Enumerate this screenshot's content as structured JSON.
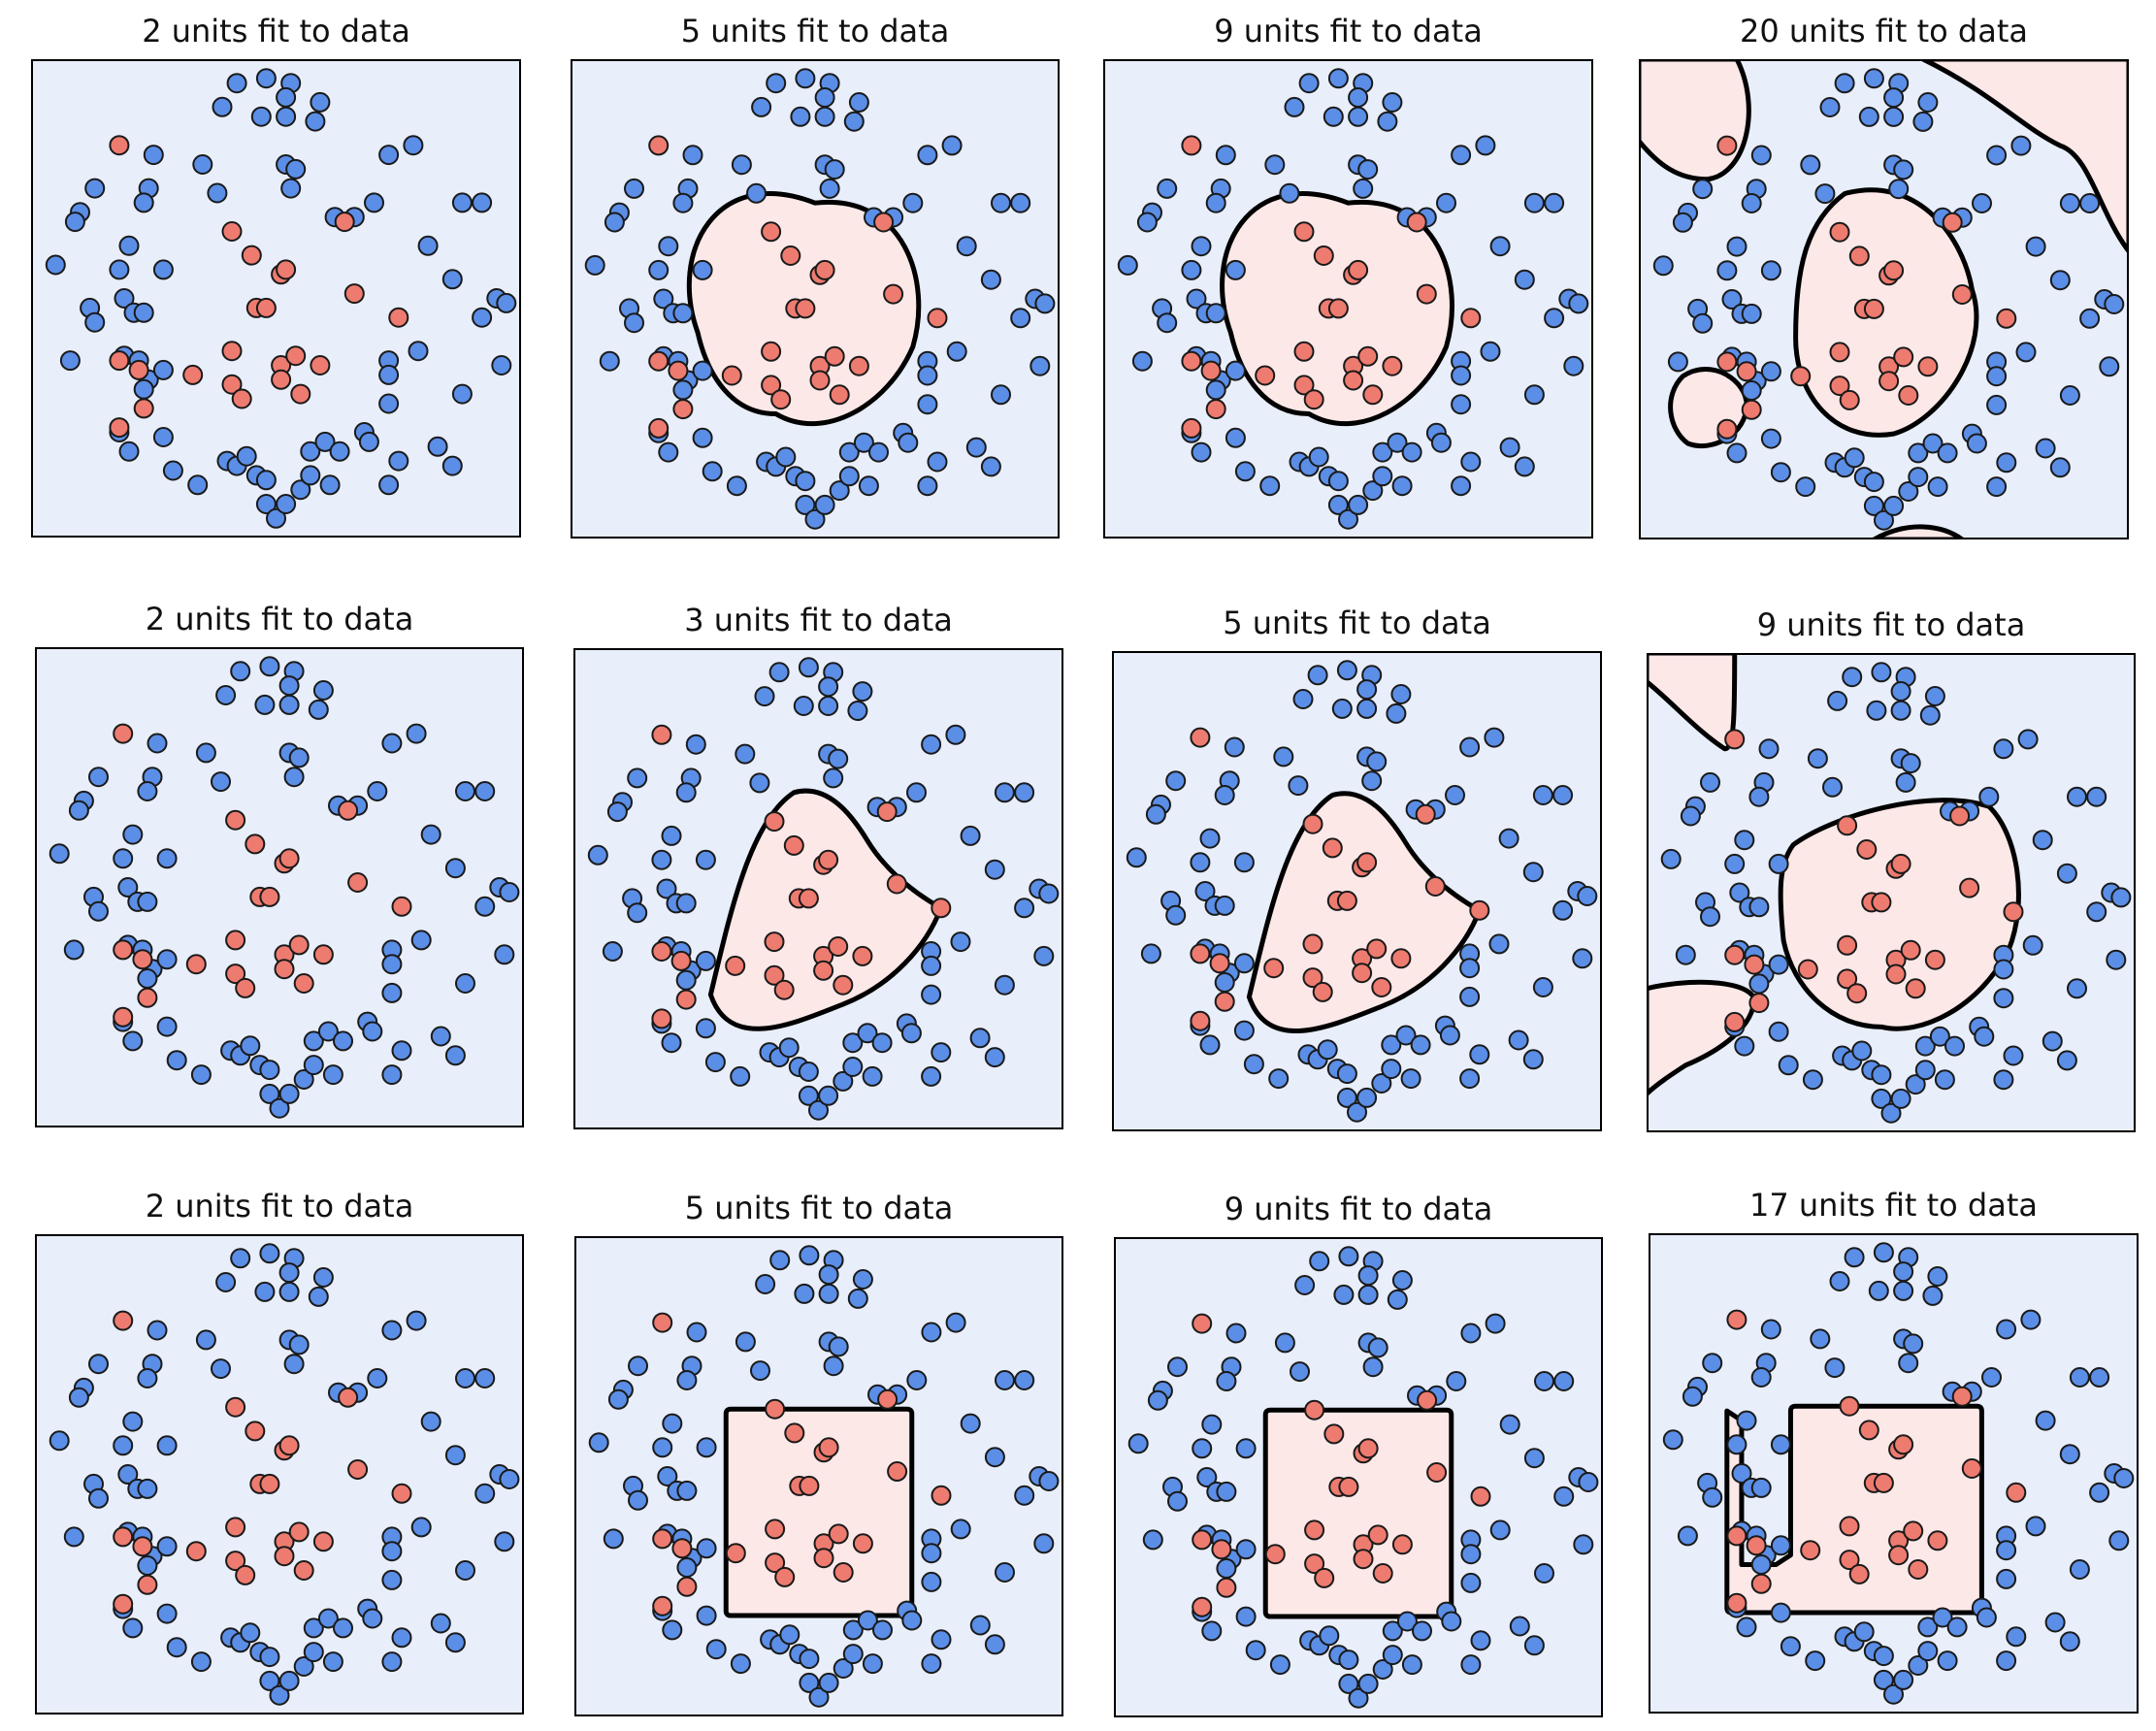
{
  "colors": {
    "background_region": "#e8eefa",
    "inside_region": "#fde8e8",
    "blue_point": "#5b8ee6",
    "red_point": "#ee7b6f",
    "point_edge": "#1a1a1a",
    "boundary": "#000000"
  },
  "chart_data": [
    {
      "type": "scatter",
      "title": "2 units fit to data",
      "boundary": "none",
      "dataset": "A",
      "xlim": [
        0,
        1
      ],
      "ylim": [
        0,
        1
      ],
      "grid": false
    },
    {
      "type": "scatter",
      "title": "5 units fit to data",
      "boundary": "round",
      "dataset": "A",
      "xlim": [
        0,
        1
      ],
      "ylim": [
        0,
        1
      ],
      "grid": false
    },
    {
      "type": "scatter",
      "title": "9 units fit to data",
      "boundary": "round",
      "dataset": "A",
      "xlim": [
        0,
        1
      ],
      "ylim": [
        0,
        1
      ],
      "grid": false
    },
    {
      "type": "scatter",
      "title": "20 units fit to data",
      "boundary": "round-with-islands",
      "dataset": "A",
      "xlim": [
        0,
        1
      ],
      "ylim": [
        0,
        1
      ],
      "grid": false
    },
    {
      "type": "scatter",
      "title": "2 units fit to data",
      "boundary": "none",
      "dataset": "A",
      "xlim": [
        0,
        1
      ],
      "ylim": [
        0,
        1
      ],
      "grid": false
    },
    {
      "type": "scatter",
      "title": "3 units fit to data",
      "boundary": "polygon",
      "dataset": "A",
      "xlim": [
        0,
        1
      ],
      "ylim": [
        0,
        1
      ],
      "grid": false
    },
    {
      "type": "scatter",
      "title": "5 units fit to data",
      "boundary": "polygon",
      "dataset": "A",
      "xlim": [
        0,
        1
      ],
      "ylim": [
        0,
        1
      ],
      "grid": false
    },
    {
      "type": "scatter",
      "title": "9 units fit to data",
      "boundary": "polygon-with-islands",
      "dataset": "A",
      "xlim": [
        0,
        1
      ],
      "ylim": [
        0,
        1
      ],
      "grid": false
    },
    {
      "type": "scatter",
      "title": "2 units fit to data",
      "boundary": "none",
      "dataset": "A",
      "xlim": [
        0,
        1
      ],
      "ylim": [
        0,
        1
      ],
      "grid": false
    },
    {
      "type": "scatter",
      "title": "5 units fit to data",
      "boundary": "rectangle",
      "dataset": "A",
      "xlim": [
        0,
        1
      ],
      "ylim": [
        0,
        1
      ],
      "grid": false
    },
    {
      "type": "scatter",
      "title": "9 units fit to data",
      "boundary": "rectangle",
      "dataset": "A",
      "xlim": [
        0,
        1
      ],
      "ylim": [
        0,
        1
      ],
      "grid": false
    },
    {
      "type": "scatter",
      "title": "17 units fit to data",
      "boundary": "rectangle-with-hook",
      "dataset": "A",
      "xlim": [
        0,
        1
      ],
      "ylim": [
        0,
        1
      ],
      "grid": false
    }
  ],
  "datasets": {
    "A": {
      "blue": [
        [
          0.42,
          0.05
        ],
        [
          0.48,
          0.04
        ],
        [
          0.53,
          0.05
        ],
        [
          0.39,
          0.1
        ],
        [
          0.59,
          0.09
        ],
        [
          0.52,
          0.08
        ],
        [
          0.47,
          0.12
        ],
        [
          0.52,
          0.12
        ],
        [
          0.58,
          0.13
        ],
        [
          0.25,
          0.2
        ],
        [
          0.78,
          0.18
        ],
        [
          0.35,
          0.22
        ],
        [
          0.52,
          0.22
        ],
        [
          0.54,
          0.23
        ],
        [
          0.73,
          0.2
        ],
        [
          0.13,
          0.27
        ],
        [
          0.24,
          0.27
        ],
        [
          0.23,
          0.3
        ],
        [
          0.1,
          0.32
        ],
        [
          0.09,
          0.34
        ],
        [
          0.38,
          0.28
        ],
        [
          0.53,
          0.27
        ],
        [
          0.7,
          0.3
        ],
        [
          0.88,
          0.3
        ],
        [
          0.92,
          0.3
        ],
        [
          0.66,
          0.33
        ],
        [
          0.62,
          0.33
        ],
        [
          0.05,
          0.43
        ],
        [
          0.2,
          0.39
        ],
        [
          0.18,
          0.44
        ],
        [
          0.81,
          0.39
        ],
        [
          0.27,
          0.44
        ],
        [
          0.86,
          0.46
        ],
        [
          0.19,
          0.5
        ],
        [
          0.21,
          0.53
        ],
        [
          0.12,
          0.52
        ],
        [
          0.13,
          0.55
        ],
        [
          0.23,
          0.53
        ],
        [
          0.95,
          0.5
        ],
        [
          0.97,
          0.51
        ],
        [
          0.92,
          0.54
        ],
        [
          0.08,
          0.63
        ],
        [
          0.19,
          0.62
        ],
        [
          0.22,
          0.63
        ],
        [
          0.24,
          0.67
        ],
        [
          0.27,
          0.65
        ],
        [
          0.23,
          0.69
        ],
        [
          0.73,
          0.63
        ],
        [
          0.73,
          0.66
        ],
        [
          0.79,
          0.61
        ],
        [
          0.96,
          0.64
        ],
        [
          0.73,
          0.72
        ],
        [
          0.88,
          0.7
        ],
        [
          0.27,
          0.79
        ],
        [
          0.2,
          0.82
        ],
        [
          0.18,
          0.78
        ],
        [
          0.29,
          0.86
        ],
        [
          0.4,
          0.84
        ],
        [
          0.42,
          0.85
        ],
        [
          0.44,
          0.83
        ],
        [
          0.46,
          0.87
        ],
        [
          0.57,
          0.82
        ],
        [
          0.6,
          0.8
        ],
        [
          0.63,
          0.82
        ],
        [
          0.68,
          0.78
        ],
        [
          0.69,
          0.8
        ],
        [
          0.75,
          0.84
        ],
        [
          0.83,
          0.81
        ],
        [
          0.86,
          0.85
        ],
        [
          0.34,
          0.89
        ],
        [
          0.48,
          0.88
        ],
        [
          0.55,
          0.9
        ],
        [
          0.57,
          0.87
        ],
        [
          0.61,
          0.89
        ],
        [
          0.73,
          0.89
        ],
        [
          0.48,
          0.93
        ],
        [
          0.5,
          0.96
        ],
        [
          0.52,
          0.93
        ]
      ],
      "red": [
        [
          0.18,
          0.18
        ],
        [
          0.41,
          0.36
        ],
        [
          0.64,
          0.34
        ],
        [
          0.45,
          0.41
        ],
        [
          0.51,
          0.45
        ],
        [
          0.52,
          0.44
        ],
        [
          0.66,
          0.49
        ],
        [
          0.46,
          0.52
        ],
        [
          0.48,
          0.52
        ],
        [
          0.75,
          0.54
        ],
        [
          0.41,
          0.61
        ],
        [
          0.18,
          0.63
        ],
        [
          0.22,
          0.65
        ],
        [
          0.33,
          0.66
        ],
        [
          0.51,
          0.64
        ],
        [
          0.54,
          0.62
        ],
        [
          0.59,
          0.64
        ],
        [
          0.41,
          0.68
        ],
        [
          0.51,
          0.67
        ],
        [
          0.43,
          0.71
        ],
        [
          0.55,
          0.7
        ],
        [
          0.23,
          0.73
        ],
        [
          0.18,
          0.77
        ]
      ]
    }
  }
}
